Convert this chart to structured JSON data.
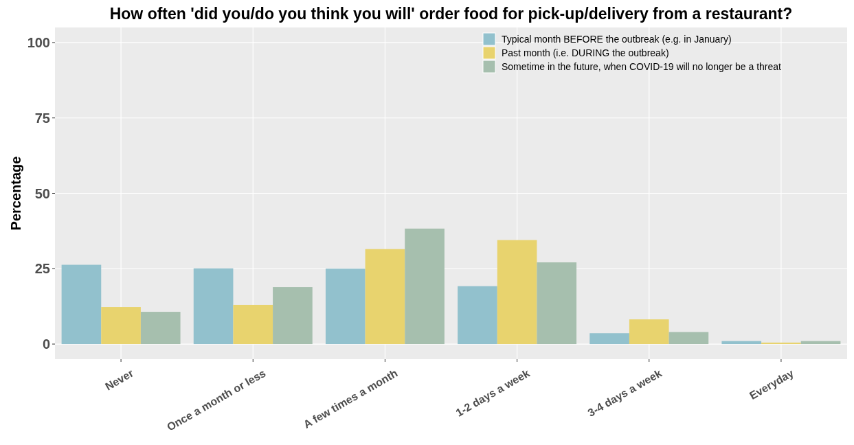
{
  "chart_data": {
    "type": "bar",
    "title": "How often 'did you/do you think you will' order food for pick-up/delivery from a restaurant?",
    "ylabel": "Percentage",
    "categories": [
      "Never",
      "Once a month or less",
      "A few times a month",
      "1-2 days a week",
      "3-4 days a week",
      "Everyday"
    ],
    "series": [
      {
        "name": "Typical month BEFORE the outbreak (e.g. in January)",
        "color": "#92c1cd",
        "values": [
          26.3,
          25.1,
          25.0,
          19.2,
          3.6,
          1.0
        ]
      },
      {
        "name": "Past month (i.e. DURING the outbreak)",
        "color": "#e8d36e",
        "values": [
          12.3,
          13.0,
          31.5,
          34.5,
          8.2,
          0.5
        ]
      },
      {
        "name": "Sometime in the future, when COVID-19 will no longer be a threat",
        "color": "#a6bfae",
        "values": [
          10.7,
          18.9,
          38.3,
          27.1,
          4.0,
          1.0
        ]
      }
    ],
    "ylim": [
      -5,
      105
    ],
    "yticks": [
      0,
      25,
      50,
      75,
      100
    ],
    "grid": true,
    "legend": "top right"
  }
}
